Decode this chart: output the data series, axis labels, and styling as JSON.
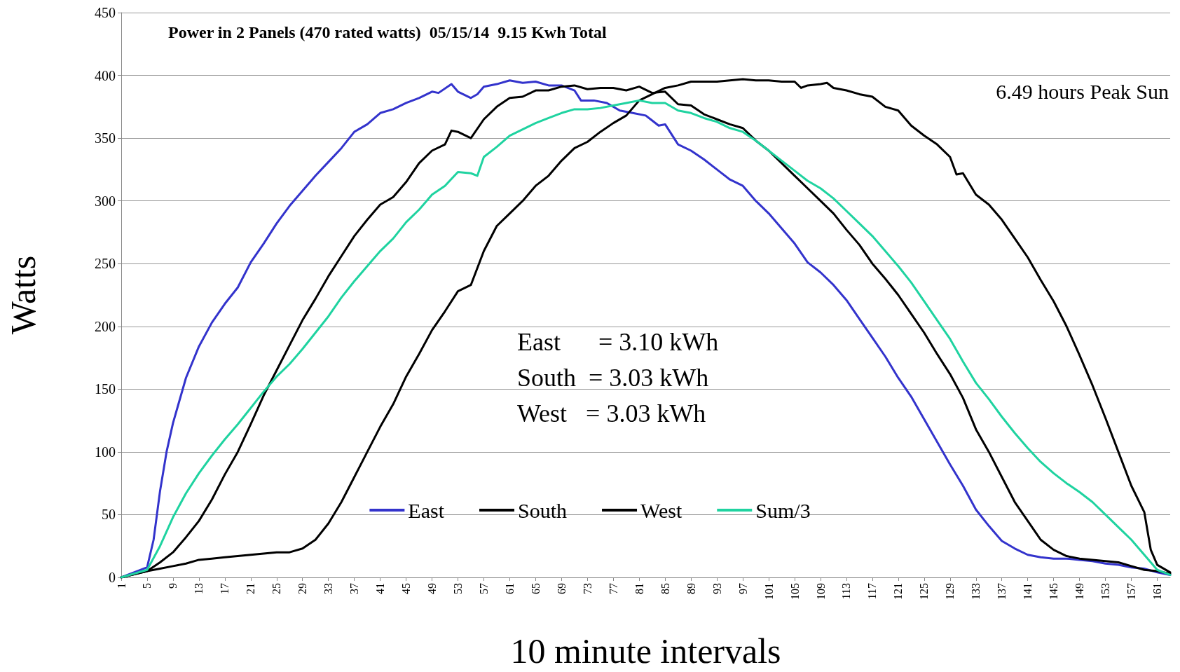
{
  "chart_data": {
    "type": "line",
    "title": "Power in 2 Panels (470 rated watts)  05/15/14  9.15 Kwh Total",
    "xlabel": "10 minute intervals",
    "ylabel": "Watts",
    "annotations": [
      "6.49 hours Peak Sun",
      "East      = 3.10 kWh",
      "South  = 3.03 kWh",
      "West   = 3.03 kWh"
    ],
    "xlim": [
      1,
      163
    ],
    "xticks": [
      1,
      5,
      9,
      13,
      17,
      21,
      25,
      29,
      33,
      37,
      41,
      45,
      49,
      53,
      57,
      61,
      65,
      69,
      73,
      77,
      81,
      85,
      89,
      93,
      97,
      101,
      105,
      109,
      113,
      117,
      121,
      125,
      129,
      133,
      137,
      141,
      145,
      149,
      153,
      157,
      161
    ],
    "ylim": [
      0,
      450
    ],
    "yticks": [
      0,
      50,
      100,
      150,
      200,
      250,
      300,
      350,
      400,
      450
    ],
    "grid": "y",
    "legend": "bottom",
    "marker": "none",
    "line_style": "solid",
    "series": [
      {
        "name": "East",
        "color": "#3333cc",
        "x": [
          1,
          5,
          6,
          7,
          8,
          9,
          11,
          13,
          15,
          17,
          19,
          21,
          23,
          25,
          27,
          29,
          31,
          33,
          35,
          37,
          39,
          41,
          43,
          45,
          47,
          49,
          50,
          52,
          53,
          55,
          56,
          57,
          59,
          61,
          63,
          65,
          67,
          69,
          71,
          72,
          74,
          76,
          78,
          80,
          82,
          83,
          84,
          85,
          87,
          89,
          91,
          93,
          95,
          97,
          99,
          101,
          103,
          105,
          107,
          109,
          111,
          113,
          115,
          117,
          119,
          121,
          123,
          125,
          127,
          129,
          131,
          133,
          135,
          137,
          139,
          141,
          143,
          145,
          147,
          149,
          151,
          153,
          155,
          157,
          159,
          161,
          163
        ],
        "values": [
          0,
          8,
          30,
          69,
          100,
          123,
          159,
          184,
          203,
          218,
          231,
          251,
          266,
          282,
          296,
          308,
          320,
          331,
          342,
          355,
          361,
          370,
          373,
          378,
          382,
          387,
          386,
          393,
          387,
          382,
          385,
          391,
          393,
          396,
          394,
          395,
          392,
          392,
          388,
          380,
          380,
          378,
          372,
          370,
          368,
          364,
          360,
          361,
          345,
          340,
          333,
          325,
          317,
          312,
          300,
          290,
          278,
          266,
          251,
          243,
          233,
          221,
          206,
          191,
          176,
          159,
          144,
          126,
          108,
          90,
          73,
          54,
          41,
          29,
          23,
          18,
          16,
          15,
          15,
          14,
          13,
          11,
          10,
          8,
          7,
          4,
          2
        ]
      },
      {
        "name": "South",
        "color": "#000000",
        "x": [
          1,
          5,
          7,
          9,
          11,
          13,
          15,
          17,
          19,
          21,
          23,
          25,
          27,
          29,
          31,
          33,
          35,
          37,
          39,
          41,
          43,
          45,
          47,
          49,
          51,
          52,
          53,
          55,
          57,
          59,
          61,
          63,
          65,
          67,
          69,
          71,
          73,
          75,
          77,
          79,
          81,
          83,
          85,
          87,
          89,
          91,
          93,
          95,
          97,
          99,
          101,
          103,
          105,
          107,
          109,
          111,
          113,
          115,
          117,
          119,
          121,
          123,
          125,
          127,
          129,
          131,
          133,
          135,
          137,
          139,
          141,
          143,
          145,
          147,
          149,
          151,
          153,
          155,
          157,
          159,
          161,
          163
        ],
        "values": [
          0,
          5,
          12,
          20,
          32,
          45,
          62,
          82,
          100,
          122,
          145,
          165,
          185,
          205,
          222,
          240,
          256,
          272,
          285,
          297,
          303,
          315,
          330,
          340,
          345,
          356,
          355,
          350,
          365,
          375,
          382,
          383,
          388,
          388,
          391,
          392,
          389,
          390,
          390,
          388,
          391,
          386,
          387,
          377,
          376,
          369,
          365,
          361,
          358,
          348,
          340,
          330,
          320,
          310,
          300,
          290,
          277,
          265,
          250,
          238,
          225,
          210,
          195,
          178,
          162,
          143,
          118,
          100,
          80,
          60,
          45,
          30,
          22,
          17,
          15,
          14,
          13,
          12,
          9,
          6,
          5,
          3
        ]
      },
      {
        "name": "West",
        "color": "#000000",
        "x": [
          1,
          5,
          7,
          9,
          11,
          13,
          15,
          17,
          19,
          21,
          23,
          25,
          27,
          29,
          31,
          33,
          35,
          37,
          39,
          41,
          43,
          45,
          47,
          49,
          51,
          53,
          55,
          57,
          59,
          61,
          63,
          65,
          67,
          69,
          71,
          73,
          75,
          77,
          79,
          81,
          83,
          85,
          87,
          89,
          91,
          93,
          95,
          97,
          99,
          101,
          103,
          105,
          106,
          107,
          109,
          110,
          111,
          113,
          115,
          117,
          119,
          121,
          123,
          125,
          127,
          129,
          130,
          131,
          133,
          135,
          137,
          139,
          141,
          143,
          145,
          147,
          149,
          151,
          153,
          155,
          157,
          159,
          160,
          161,
          163
        ],
        "values": [
          0,
          5,
          7,
          9,
          11,
          14,
          15,
          16,
          17,
          18,
          19,
          20,
          20,
          23,
          30,
          43,
          60,
          80,
          100,
          120,
          138,
          160,
          178,
          197,
          212,
          228,
          233,
          260,
          280,
          290,
          300,
          312,
          320,
          332,
          342,
          347,
          355,
          362,
          368,
          380,
          385,
          390,
          392,
          395,
          395,
          395,
          396,
          397,
          396,
          396,
          395,
          395,
          390,
          392,
          393,
          394,
          390,
          388,
          385,
          383,
          375,
          372,
          360,
          352,
          345,
          335,
          321,
          322,
          305,
          297,
          285,
          270,
          255,
          237,
          220,
          200,
          177,
          153,
          127,
          100,
          73,
          52,
          22,
          10,
          4
        ]
      },
      {
        "name": "Sum/3",
        "color": "#1fd3a0",
        "x": [
          1,
          5,
          7,
          9,
          11,
          13,
          15,
          17,
          19,
          21,
          23,
          25,
          27,
          29,
          31,
          33,
          35,
          37,
          39,
          41,
          43,
          45,
          47,
          49,
          51,
          53,
          55,
          56,
          57,
          59,
          61,
          63,
          65,
          67,
          69,
          71,
          73,
          75,
          77,
          79,
          81,
          83,
          85,
          87,
          89,
          91,
          93,
          95,
          97,
          99,
          101,
          103,
          105,
          107,
          109,
          111,
          113,
          115,
          117,
          119,
          121,
          123,
          125,
          127,
          129,
          131,
          133,
          135,
          137,
          139,
          141,
          143,
          145,
          147,
          149,
          151,
          153,
          155,
          157,
          159,
          161,
          163
        ],
        "values": [
          0,
          6,
          25,
          48,
          67,
          83,
          97,
          110,
          122,
          135,
          148,
          160,
          170,
          182,
          195,
          208,
          223,
          236,
          248,
          260,
          270,
          283,
          293,
          305,
          312,
          323,
          322,
          320,
          335,
          343,
          352,
          357,
          362,
          366,
          370,
          373,
          373,
          374,
          376,
          378,
          380,
          378,
          378,
          372,
          370,
          366,
          363,
          358,
          355,
          348,
          340,
          332,
          324,
          316,
          310,
          302,
          292,
          282,
          272,
          260,
          248,
          235,
          220,
          205,
          190,
          172,
          155,
          142,
          128,
          115,
          103,
          92,
          83,
          75,
          68,
          60,
          50,
          40,
          30,
          18,
          6,
          2
        ]
      }
    ]
  }
}
